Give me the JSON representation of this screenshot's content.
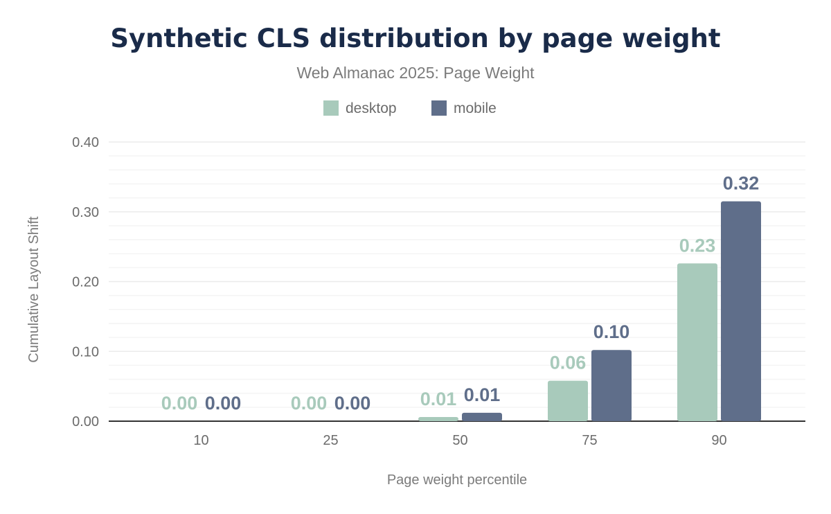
{
  "chart_data": {
    "type": "bar",
    "title": "Synthetic CLS distribution by page weight",
    "subtitle": "Web Almanac 2025: Page Weight",
    "xlabel": "Page weight percentile",
    "ylabel": "Cumulative Layout Shift",
    "categories": [
      "10",
      "25",
      "50",
      "75",
      "90"
    ],
    "ylim": [
      0,
      0.4
    ],
    "yticks": [
      "0.00",
      "0.10",
      "0.20",
      "0.30",
      "0.40"
    ],
    "grid": true,
    "legend_position": "top",
    "series": [
      {
        "name": "desktop",
        "color": "#a8cabb",
        "values": [
          0.0,
          0.0,
          0.006,
          0.058,
          0.226
        ],
        "labels": [
          "0.00",
          "0.00",
          "0.01",
          "0.06",
          "0.23"
        ]
      },
      {
        "name": "mobile",
        "color": "#5f6e8a",
        "values": [
          0.0,
          0.0,
          0.012,
          0.102,
          0.315
        ],
        "labels": [
          "0.00",
          "0.00",
          "0.01",
          "0.10",
          "0.32"
        ]
      }
    ]
  }
}
